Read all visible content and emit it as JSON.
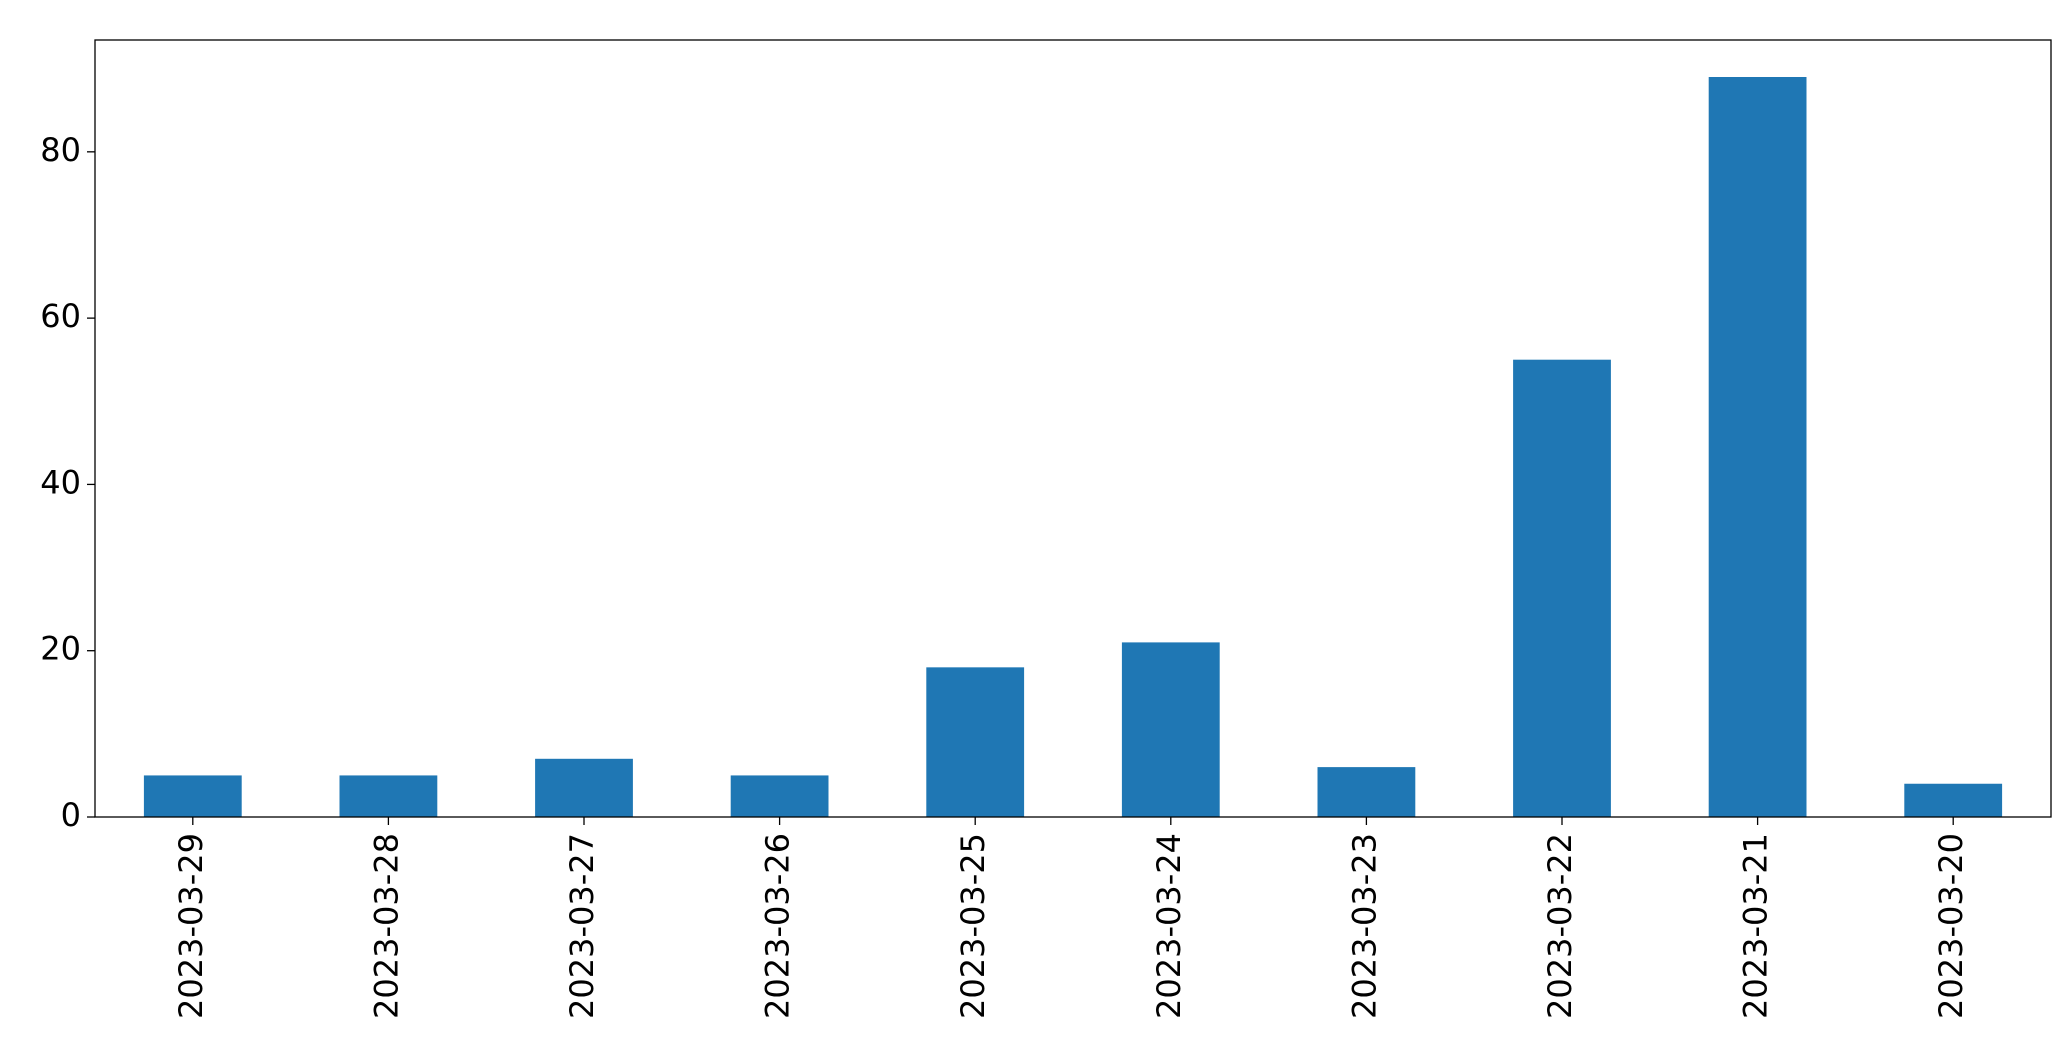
{
  "chart_data": {
    "type": "bar",
    "categories": [
      "2023-03-29",
      "2023-03-28",
      "2023-03-27",
      "2023-03-26",
      "2023-03-25",
      "2023-03-24",
      "2023-03-23",
      "2023-03-22",
      "2023-03-21",
      "2023-03-20"
    ],
    "values": [
      5,
      5,
      7,
      5,
      18,
      21,
      6,
      55,
      89,
      4
    ],
    "color": "#1f77b4",
    "ylim": [
      0,
      93.45
    ],
    "yticks": [
      0,
      20,
      40,
      60,
      80
    ],
    "grid": false
  }
}
